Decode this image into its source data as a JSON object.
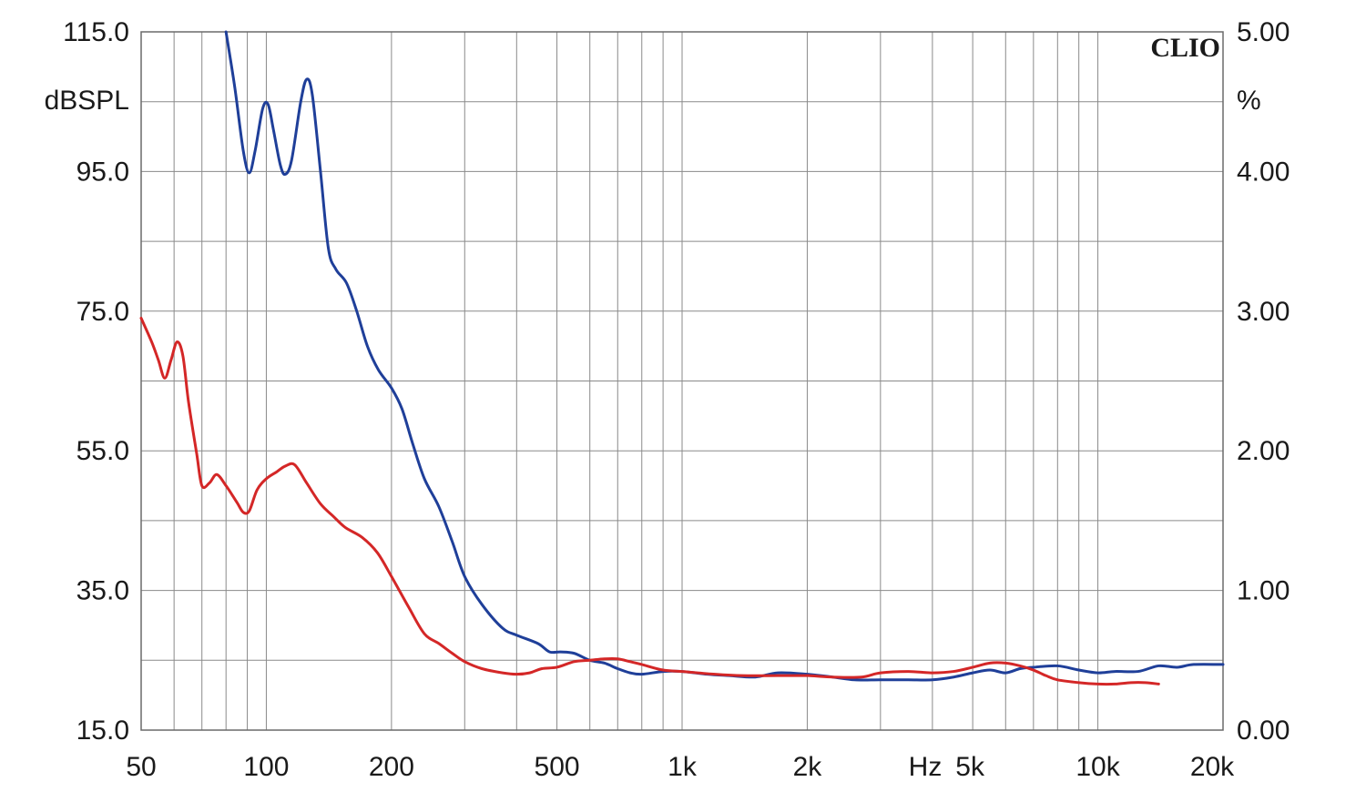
{
  "chart_data": {
    "type": "line",
    "x_scale": "log",
    "xlim": [
      50,
      20000
    ],
    "ylim_left": [
      15,
      115
    ],
    "ylim_right": [
      0,
      5
    ],
    "grid": true,
    "brand_label": "CLIO",
    "ylabel_left": "dBSPL",
    "ylabel_right": "%",
    "xlabel": "Hz",
    "x_ticks": [
      {
        "value": 50,
        "label": "50"
      },
      {
        "value": 100,
        "label": "100"
      },
      {
        "value": 200,
        "label": "200"
      },
      {
        "value": 500,
        "label": "500"
      },
      {
        "value": 1000,
        "label": "1k"
      },
      {
        "value": 2000,
        "label": "2k"
      },
      {
        "value": 5000,
        "label": "5k"
      },
      {
        "value": 10000,
        "label": "10k"
      },
      {
        "value": 20000,
        "label": "20k"
      }
    ],
    "y_left_ticks": [
      {
        "value": 115,
        "label": "115.0"
      },
      {
        "value": 95,
        "label": "95.0"
      },
      {
        "value": 75,
        "label": "75.0"
      },
      {
        "value": 55,
        "label": "55.0"
      },
      {
        "value": 35,
        "label": "35.0"
      },
      {
        "value": 15,
        "label": "15.0"
      }
    ],
    "y_right_ticks": [
      {
        "value": 5,
        "label": "5.00"
      },
      {
        "value": 4,
        "label": "4.00"
      },
      {
        "value": 3,
        "label": "3.00"
      },
      {
        "value": 2,
        "label": "2.00"
      },
      {
        "value": 1,
        "label": "1.00"
      },
      {
        "value": 0,
        "label": "0.00"
      }
    ],
    "series": [
      {
        "color": "#1f3f99",
        "axis": "right",
        "points": [
          [
            80,
            5.0
          ],
          [
            84,
            4.6
          ],
          [
            88,
            4.15
          ],
          [
            91,
            3.99
          ],
          [
            94,
            4.15
          ],
          [
            98,
            4.45
          ],
          [
            101,
            4.48
          ],
          [
            104,
            4.3
          ],
          [
            108,
            4.05
          ],
          [
            111,
            3.98
          ],
          [
            115,
            4.08
          ],
          [
            121,
            4.5
          ],
          [
            125,
            4.66
          ],
          [
            129,
            4.55
          ],
          [
            135,
            4.0
          ],
          [
            141,
            3.45
          ],
          [
            147,
            3.3
          ],
          [
            156,
            3.2
          ],
          [
            165,
            3.0
          ],
          [
            175,
            2.75
          ],
          [
            186,
            2.58
          ],
          [
            200,
            2.45
          ],
          [
            212,
            2.3
          ],
          [
            225,
            2.05
          ],
          [
            240,
            1.8
          ],
          [
            260,
            1.6
          ],
          [
            280,
            1.35
          ],
          [
            300,
            1.1
          ],
          [
            330,
            0.9
          ],
          [
            370,
            0.73
          ],
          [
            400,
            0.68
          ],
          [
            450,
            0.62
          ],
          [
            480,
            0.56
          ],
          [
            510,
            0.56
          ],
          [
            550,
            0.55
          ],
          [
            600,
            0.5
          ],
          [
            650,
            0.48
          ],
          [
            700,
            0.44
          ],
          [
            750,
            0.41
          ],
          [
            800,
            0.4
          ],
          [
            900,
            0.42
          ],
          [
            1000,
            0.42
          ],
          [
            1150,
            0.4
          ],
          [
            1300,
            0.39
          ],
          [
            1500,
            0.38
          ],
          [
            1700,
            0.41
          ],
          [
            2000,
            0.4
          ],
          [
            2300,
            0.38
          ],
          [
            2600,
            0.36
          ],
          [
            3000,
            0.36
          ],
          [
            3500,
            0.36
          ],
          [
            4000,
            0.36
          ],
          [
            4500,
            0.38
          ],
          [
            5000,
            0.41
          ],
          [
            5500,
            0.43
          ],
          [
            6000,
            0.41
          ],
          [
            6500,
            0.44
          ],
          [
            7000,
            0.45
          ],
          [
            8000,
            0.46
          ],
          [
            9000,
            0.43
          ],
          [
            10000,
            0.41
          ],
          [
            11000,
            0.42
          ],
          [
            12500,
            0.42
          ],
          [
            14000,
            0.46
          ],
          [
            15500,
            0.45
          ],
          [
            17000,
            0.47
          ],
          [
            20000,
            0.47
          ]
        ]
      },
      {
        "color": "#d42727",
        "axis": "right",
        "points": [
          [
            50,
            2.95
          ],
          [
            53,
            2.78
          ],
          [
            55,
            2.65
          ],
          [
            57,
            2.52
          ],
          [
            59,
            2.65
          ],
          [
            61,
            2.78
          ],
          [
            63,
            2.68
          ],
          [
            65,
            2.35
          ],
          [
            68,
            1.98
          ],
          [
            70,
            1.75
          ],
          [
            73,
            1.77
          ],
          [
            76,
            1.83
          ],
          [
            80,
            1.75
          ],
          [
            85,
            1.63
          ],
          [
            88,
            1.56
          ],
          [
            91,
            1.57
          ],
          [
            95,
            1.72
          ],
          [
            100,
            1.8
          ],
          [
            106,
            1.85
          ],
          [
            111,
            1.89
          ],
          [
            117,
            1.9
          ],
          [
            125,
            1.77
          ],
          [
            135,
            1.62
          ],
          [
            145,
            1.53
          ],
          [
            155,
            1.45
          ],
          [
            170,
            1.38
          ],
          [
            185,
            1.27
          ],
          [
            200,
            1.1
          ],
          [
            220,
            0.88
          ],
          [
            240,
            0.69
          ],
          [
            260,
            0.62
          ],
          [
            280,
            0.55
          ],
          [
            300,
            0.49
          ],
          [
            330,
            0.44
          ],
          [
            370,
            0.41
          ],
          [
            400,
            0.4
          ],
          [
            430,
            0.41
          ],
          [
            460,
            0.44
          ],
          [
            500,
            0.45
          ],
          [
            550,
            0.49
          ],
          [
            600,
            0.5
          ],
          [
            650,
            0.51
          ],
          [
            700,
            0.51
          ],
          [
            750,
            0.49
          ],
          [
            800,
            0.47
          ],
          [
            900,
            0.43
          ],
          [
            1000,
            0.42
          ],
          [
            1200,
            0.4
          ],
          [
            1400,
            0.39
          ],
          [
            1700,
            0.39
          ],
          [
            2000,
            0.39
          ],
          [
            2300,
            0.38
          ],
          [
            2700,
            0.38
          ],
          [
            3000,
            0.41
          ],
          [
            3500,
            0.42
          ],
          [
            4000,
            0.41
          ],
          [
            4500,
            0.42
          ],
          [
            5000,
            0.45
          ],
          [
            5500,
            0.48
          ],
          [
            6000,
            0.48
          ],
          [
            6500,
            0.46
          ],
          [
            7000,
            0.43
          ],
          [
            7500,
            0.39
          ],
          [
            8000,
            0.36
          ],
          [
            9000,
            0.34
          ],
          [
            10000,
            0.33
          ],
          [
            11000,
            0.33
          ],
          [
            12000,
            0.34
          ],
          [
            13000,
            0.34
          ],
          [
            14000,
            0.33
          ]
        ]
      }
    ]
  }
}
